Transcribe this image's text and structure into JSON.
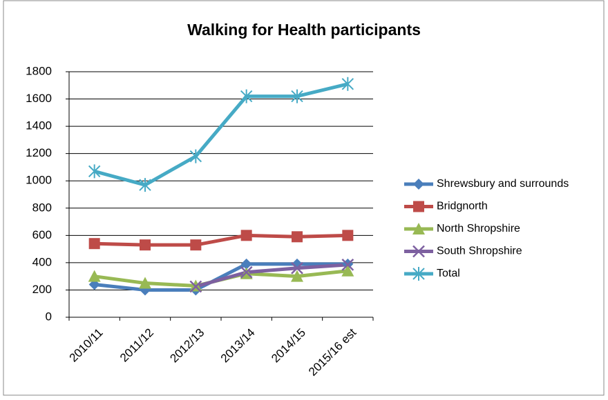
{
  "chart_data": {
    "type": "line",
    "title": "Walking for Health participants",
    "categories": [
      "2010/11",
      "2011/12",
      "2012/13",
      "2013/14",
      "2014/15",
      "2015/16 est"
    ],
    "series": [
      {
        "name": "Shrewsbury and surrounds",
        "color": "#4a7ebb",
        "marker": "diamond",
        "values": [
          240,
          200,
          200,
          390,
          390,
          390
        ]
      },
      {
        "name": "Bridgnorth",
        "color": "#be4b48",
        "marker": "square",
        "values": [
          540,
          530,
          530,
          600,
          590,
          600
        ]
      },
      {
        "name": "North Shropshire",
        "color": "#98b954",
        "marker": "triangle",
        "values": [
          300,
          250,
          230,
          320,
          300,
          340
        ]
      },
      {
        "name": "South Shropshire",
        "color": "#7d60a0",
        "marker": "x",
        "values": [
          null,
          null,
          225,
          330,
          360,
          385
        ]
      },
      {
        "name": "Total",
        "color": "#46aac5",
        "marker": "star",
        "values": [
          1070,
          970,
          1180,
          1620,
          1620,
          1710
        ]
      }
    ],
    "ylim": [
      0,
      1800
    ],
    "yticks": [
      0,
      200,
      400,
      600,
      800,
      1000,
      1200,
      1400,
      1600,
      1800
    ],
    "grid": true,
    "legend": "right"
  }
}
